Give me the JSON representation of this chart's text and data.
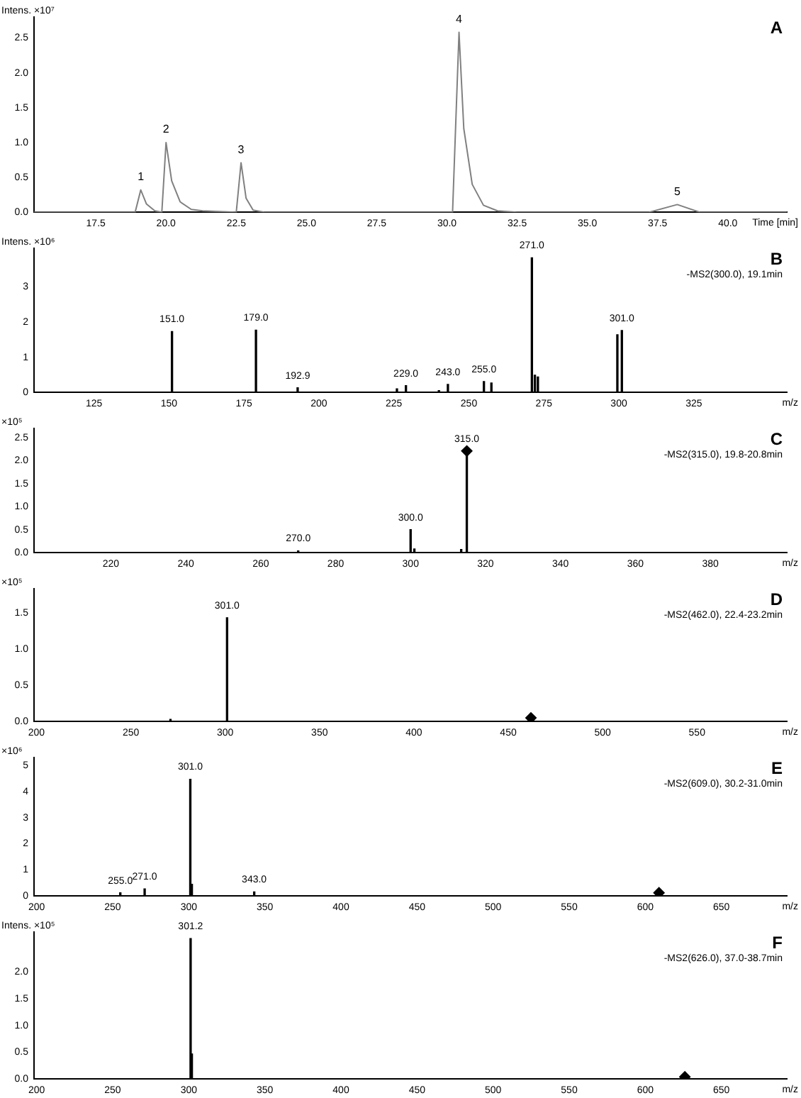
{
  "chart_data": [
    {
      "type": "line",
      "xlabel": "Time [min]",
      "ylabel": "Intens. ×10⁷",
      "marker": "none",
      "grid": false,
      "legend": false,
      "x": [
        15.3,
        18.9,
        19.1,
        19.3,
        19.6,
        19.85,
        20.0,
        20.2,
        20.5,
        20.9,
        21.3,
        22.5,
        22.67,
        22.85,
        23.1,
        23.5,
        30.2,
        30.43,
        30.6,
        30.9,
        31.3,
        31.8,
        32.5,
        37.2,
        38.2,
        39.0,
        42.1
      ],
      "series": [
        {
          "color": "#808080",
          "values": [
            0,
            0,
            0.32,
            0.12,
            0.02,
            0,
            1.0,
            0.45,
            0.15,
            0.04,
            0.02,
            0,
            0.71,
            0.2,
            0.03,
            0,
            0,
            2.58,
            1.2,
            0.4,
            0.1,
            0.02,
            0,
            0,
            0.11,
            0,
            0
          ]
        }
      ],
      "xlim": [
        15.3,
        42.1
      ],
      "ylim": [
        0,
        2.8
      ],
      "xticks": [
        17.5,
        {
          "value": 20,
          "label": "20.0"
        },
        22.5,
        {
          "value": 25,
          "label": "25.0"
        },
        27.5,
        {
          "value": 30,
          "label": "30.0"
        },
        32.5,
        {
          "value": 35,
          "label": "35.0"
        },
        37.5,
        {
          "value": 40,
          "label": "40.0"
        }
      ],
      "yticks": [
        {
          "value": 0,
          "label": "0.0"
        },
        0.5,
        {
          "value": 1,
          "label": "1.0"
        },
        1.5,
        {
          "value": 2,
          "label": "2.0"
        },
        2.5
      ],
      "annotations": [
        "A",
        {
          "text": "1",
          "x": 19.1,
          "y": 0.32
        },
        {
          "text": "2",
          "x": 20.0,
          "y": 1.0
        },
        {
          "text": "3",
          "x": 22.67,
          "y": 0.71
        },
        {
          "text": "4",
          "x": 30.43,
          "y": 2.58
        },
        {
          "text": "5",
          "x": 38.2,
          "y": 0.11
        }
      ]
    },
    {
      "type": "bar",
      "xlabel": "m/z",
      "ylabel": "Intens. ×10⁶",
      "grid": false,
      "legend": false,
      "series": [
        {
          "color": "#000000",
          "x": [
            151,
            179,
            192.9,
            226,
            229,
            240,
            243,
            255,
            257.5,
            271,
            272,
            273,
            299.5,
            301
          ],
          "values": [
            1.73,
            1.77,
            0.13,
            0.1,
            0.19,
            0.05,
            0.23,
            0.31,
            0.27,
            3.83,
            0.49,
            0.44,
            1.64,
            1.76
          ]
        }
      ],
      "xlim": [
        105,
        356
      ],
      "ylim": [
        0,
        4.1
      ],
      "xticks": [
        125,
        150,
        175,
        200,
        225,
        250,
        275,
        300,
        325
      ],
      "yticks": [
        0,
        1,
        2,
        3
      ],
      "annotations": [
        "B",
        "-MS2(300.0), 19.1min",
        {
          "text": "151.0",
          "x": 151,
          "y": 1.73
        },
        {
          "text": "179.0",
          "x": 179,
          "y": 1.77
        },
        {
          "text": "192.9",
          "x": 192.9,
          "y": 0.13
        },
        {
          "text": "229.0",
          "x": 229,
          "y": 0.19
        },
        {
          "text": "243.0",
          "x": 243,
          "y": 0.23
        },
        {
          "text": "255.0",
          "x": 255,
          "y": 0.31
        },
        {
          "text": "271.0",
          "x": 271,
          "y": 3.83
        },
        {
          "text": "301.0",
          "x": 301,
          "y": 1.76
        }
      ]
    },
    {
      "type": "bar",
      "xlabel": "m/z",
      "ylabel": "×10⁵",
      "grid": false,
      "legend": false,
      "series": [
        {
          "color": "#000000",
          "x": [
            270,
            285,
            300,
            301,
            313.5,
            315
          ],
          "values": [
            0.04,
            0.01,
            0.5,
            0.08,
            0.07,
            2.21
          ]
        },
        {
          "type": "scatter",
          "marker": "diamond",
          "color": "#000000",
          "x": [
            315
          ],
          "values": [
            2.21
          ]
        }
      ],
      "xlim": [
        199.5,
        400.4
      ],
      "ylim": [
        0,
        2.7
      ],
      "xticks": [
        220,
        240,
        260,
        280,
        300,
        320,
        340,
        360,
        380
      ],
      "yticks": [
        {
          "value": 0,
          "label": "0.0"
        },
        0.5,
        {
          "value": 1,
          "label": "1.0"
        },
        1.5,
        {
          "value": 2,
          "label": "2.0"
        },
        2.5
      ],
      "annotations": [
        "C",
        "-MS2(315.0), 19.8-20.8min",
        {
          "text": "270.0",
          "x": 270,
          "y": 0.04
        },
        {
          "text": "300.0",
          "x": 300,
          "y": 0.5
        },
        {
          "text": "315.0",
          "x": 315,
          "y": 2.21
        }
      ]
    },
    {
      "type": "bar",
      "xlabel": "m/z",
      "ylabel": "×10⁵",
      "grid": false,
      "legend": false,
      "series": [
        {
          "color": "#000000",
          "x": [
            271,
            301
          ],
          "values": [
            0.03,
            1.43
          ]
        },
        {
          "type": "scatter",
          "marker": "diamond",
          "color": "#000000",
          "x": [
            462
          ],
          "values": [
            0.05
          ]
        }
      ],
      "xlim": [
        198.7,
        597.6
      ],
      "ylim": [
        0,
        1.83
      ],
      "xticks": [
        200,
        250,
        300,
        350,
        400,
        450,
        500,
        550
      ],
      "yticks": [
        {
          "value": 0,
          "label": "0.0"
        },
        0.5,
        {
          "value": 1,
          "label": "1.0"
        },
        1.5
      ],
      "annotations": [
        "D",
        "-MS2(462.0), 22.4-23.2min",
        {
          "text": "301.0",
          "x": 301,
          "y": 1.43
        }
      ]
    },
    {
      "type": "bar",
      "xlabel": "m/z",
      "ylabel": "×10⁶",
      "grid": false,
      "legend": false,
      "series": [
        {
          "color": "#000000",
          "x": [
            255,
            271,
            301,
            302,
            343
          ],
          "values": [
            0.12,
            0.27,
            4.47,
            0.45,
            0.16
          ]
        },
        {
          "type": "scatter",
          "marker": "diamond",
          "color": "#000000",
          "x": [
            609
          ],
          "values": [
            0.12
          ]
        }
      ],
      "xlim": [
        198.3,
        693
      ],
      "ylim": [
        0,
        5.3
      ],
      "xticks": [
        200,
        250,
        300,
        350,
        400,
        450,
        500,
        550,
        600,
        650
      ],
      "yticks": [
        0,
        1,
        2,
        3,
        4,
        5
      ],
      "annotations": [
        "E",
        "-MS2(609.0), 30.2-31.0min",
        {
          "text": "255.0",
          "x": 255,
          "y": 0.12
        },
        {
          "text": "271.0",
          "x": 271,
          "y": 0.27
        },
        {
          "text": "301.0",
          "x": 301,
          "y": 4.47
        },
        {
          "text": "343.0",
          "x": 343,
          "y": 0.16
        }
      ]
    },
    {
      "type": "bar",
      "xlabel": "m/z",
      "ylabel": "Intens. ×10⁵",
      "grid": false,
      "legend": false,
      "series": [
        {
          "color": "#000000",
          "x": [
            301.2,
            302
          ],
          "values": [
            2.63,
            0.47
          ]
        },
        {
          "type": "scatter",
          "marker": "diamond",
          "color": "#000000",
          "x": [
            626
          ],
          "values": [
            0.04
          ]
        }
      ],
      "xlim": [
        198.3,
        693
      ],
      "ylim": [
        0,
        2.75
      ],
      "xticks": [
        200,
        250,
        300,
        350,
        400,
        450,
        500,
        550,
        600,
        650
      ],
      "yticks": [
        {
          "value": 0,
          "label": "0.0"
        },
        0.5,
        {
          "value": 1,
          "label": "1.0"
        },
        1.5,
        {
          "value": 2,
          "label": "2.0"
        }
      ],
      "annotations": [
        "F",
        "-MS2(626.0), 37.0-38.7min",
        {
          "text": "301.2",
          "x": 301.2,
          "y": 2.63
        }
      ]
    }
  ]
}
